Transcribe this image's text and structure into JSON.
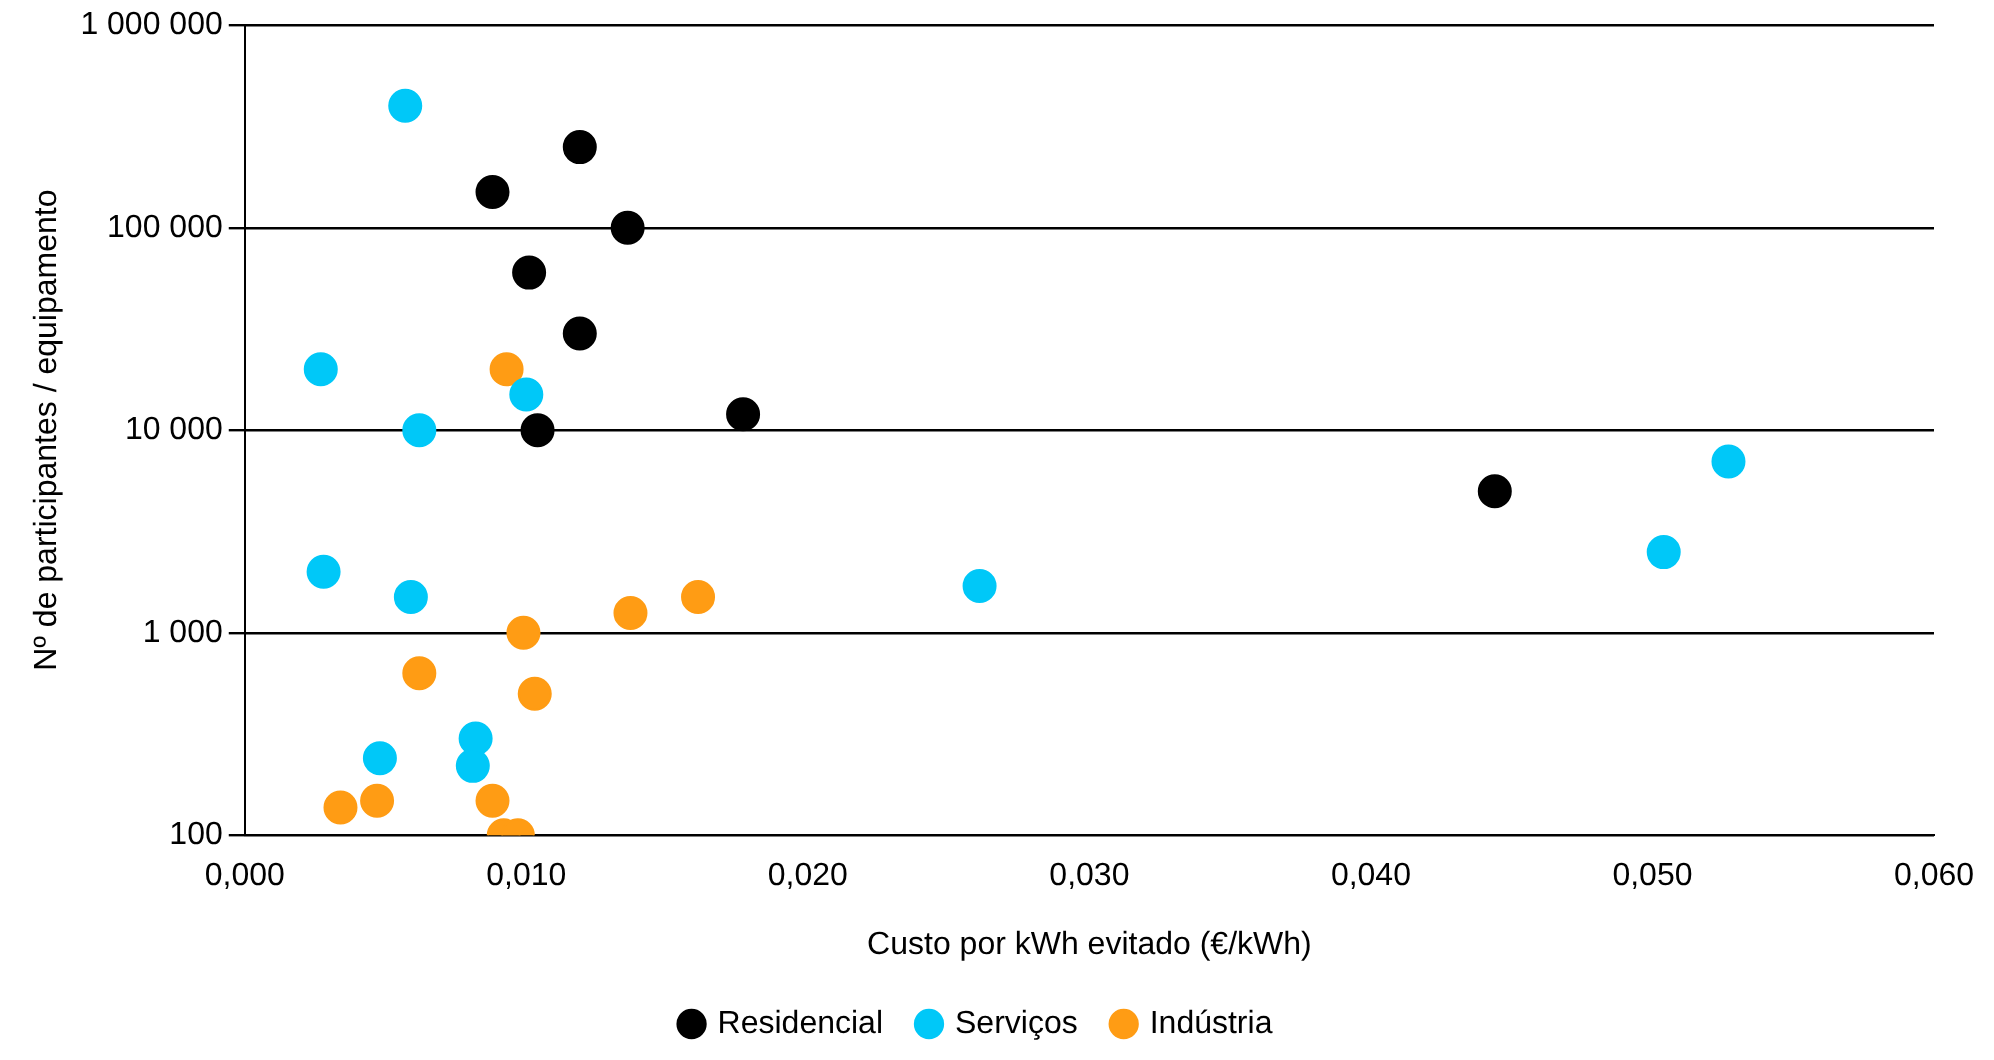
{
  "chart_data": {
    "type": "scatter",
    "xlabel": "Custo por kWh evitado (€/kWh)",
    "ylabel": "Nº de participantes / equipamento",
    "log": "y",
    "grid": "y",
    "legend": "bottom",
    "marker": "circle",
    "xlim": [
      0,
      0.06
    ],
    "xticks": [
      {
        "value": 0,
        "label": "0,000"
      },
      {
        "value": 0.01,
        "label": "0,010"
      },
      {
        "value": 0.02,
        "label": "0,020"
      },
      {
        "value": 0.03,
        "label": "0,030"
      },
      {
        "value": 0.04,
        "label": "0,040"
      },
      {
        "value": 0.05,
        "label": "0,050"
      },
      {
        "value": 0.06,
        "label": "0,060"
      }
    ],
    "ylim": [
      100,
      1000000
    ],
    "yticks": [
      100,
      {
        "value": 1000,
        "label": "1 000"
      },
      {
        "value": 10000,
        "label": "10 000"
      },
      {
        "value": 100000,
        "label": "100 000"
      },
      {
        "value": 1000000,
        "label": "1 000 000"
      }
    ],
    "series": [
      {
        "name": "Residencial",
        "color": "#000000",
        "x": [
          0.0088,
          0.0119,
          0.0136,
          0.0101,
          0.0119,
          0.0104,
          0.0177,
          0.0444
        ],
        "values": [
          150000,
          250000,
          100000,
          60000,
          30000,
          10000,
          12000,
          5000
        ]
      },
      {
        "name": "Serviços",
        "color": "#00c8f8",
        "x": [
          0.0057,
          0.0027,
          0.01,
          0.0062,
          0.0028,
          0.0059,
          0.0261,
          0.0504,
          0.0527,
          0.0082,
          0.0081,
          0.0048
        ],
        "values": [
          400000,
          20000,
          15000,
          10000,
          2000,
          1500,
          1700,
          2500,
          7000,
          300,
          220,
          240
        ]
      },
      {
        "name": "Indústria",
        "color": "#ff9c14",
        "x": [
          0.0093,
          0.0161,
          0.0137,
          0.0099,
          0.0103,
          0.0062,
          0.0034,
          0.0047,
          0.0088,
          0.0092,
          0.0097
        ],
        "values": [
          20000,
          1500,
          1250,
          1000,
          500,
          630,
          137,
          148,
          148,
          100,
          100
        ]
      }
    ]
  }
}
